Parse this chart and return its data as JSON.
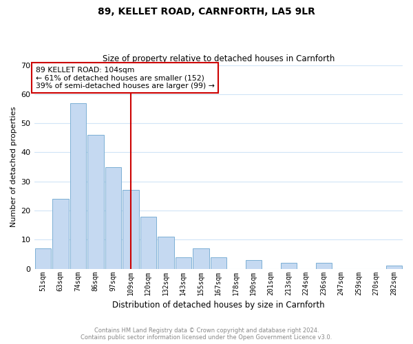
{
  "title": "89, KELLET ROAD, CARNFORTH, LA5 9LR",
  "subtitle": "Size of property relative to detached houses in Carnforth",
  "xlabel": "Distribution of detached houses by size in Carnforth",
  "ylabel": "Number of detached properties",
  "bin_labels": [
    "51sqm",
    "63sqm",
    "74sqm",
    "86sqm",
    "97sqm",
    "109sqm",
    "120sqm",
    "132sqm",
    "143sqm",
    "155sqm",
    "167sqm",
    "178sqm",
    "190sqm",
    "201sqm",
    "213sqm",
    "224sqm",
    "236sqm",
    "247sqm",
    "259sqm",
    "270sqm",
    "282sqm"
  ],
  "bar_values": [
    7,
    24,
    57,
    46,
    35,
    27,
    18,
    11,
    4,
    7,
    4,
    0,
    3,
    0,
    2,
    0,
    2,
    0,
    0,
    0,
    1
  ],
  "bar_color": "#c5d9f1",
  "bar_edge_color": "#7bafd4",
  "vline_index": 5,
  "vline_color": "#cc0000",
  "annotation_line1": "89 KELLET ROAD: 104sqm",
  "annotation_line2": "← 61% of detached houses are smaller (152)",
  "annotation_line3": "39% of semi-detached houses are larger (99) →",
  "annotation_box_edge": "#cc0000",
  "ylim": [
    0,
    70
  ],
  "yticks": [
    0,
    10,
    20,
    30,
    40,
    50,
    60,
    70
  ],
  "footer_line1": "Contains HM Land Registry data © Crown copyright and database right 2024.",
  "footer_line2": "Contains public sector information licensed under the Open Government Licence v3.0.",
  "bg_color": "#ffffff",
  "grid_color": "#d0e4f7"
}
